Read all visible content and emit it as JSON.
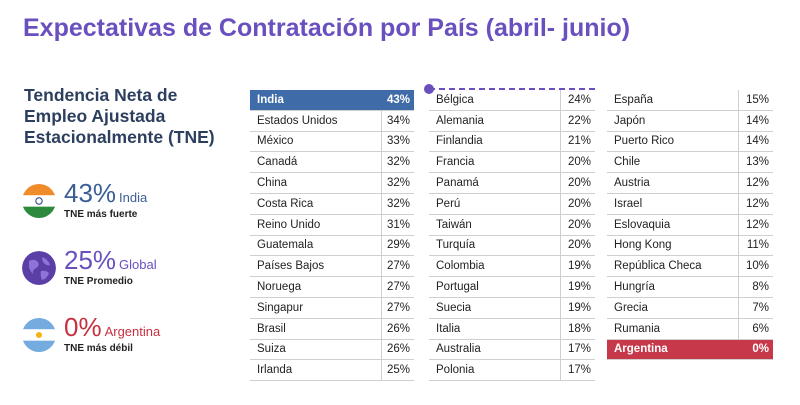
{
  "title": "Expectativas de Contratación por País (abril- junio)",
  "side": {
    "heading": "Tendencia Neta de Empleo Ajustada Estacionalmente (TNE)",
    "stats": [
      {
        "pct": "43%",
        "country": "India",
        "desc": "TNE más fuerte"
      },
      {
        "pct": "25%",
        "country": "Global",
        "desc": "TNE Promedio"
      },
      {
        "pct": "0%",
        "country": "Argentina",
        "desc": "TNE más débil"
      }
    ]
  },
  "colors": {
    "purple": "#6a4fbf",
    "india_blue": "#3f6ca8",
    "argentina_red": "#c6384a"
  },
  "chart_data": {
    "type": "table",
    "columns": [
      [
        {
          "country": "India",
          "value": "43%"
        },
        {
          "country": "Estados Unidos",
          "value": "34%"
        },
        {
          "country": "México",
          "value": "33%"
        },
        {
          "country": "Canadá",
          "value": "32%"
        },
        {
          "country": "China",
          "value": "32%"
        },
        {
          "country": "Costa Rica",
          "value": "32%"
        },
        {
          "country": "Reino Unido",
          "value": "31%"
        },
        {
          "country": "Guatemala",
          "value": "29%"
        },
        {
          "country": "Países Bajos",
          "value": "27%"
        },
        {
          "country": "Noruega",
          "value": "27%"
        },
        {
          "country": "Singapur",
          "value": "27%"
        },
        {
          "country": "Brasil",
          "value": "26%"
        },
        {
          "country": "Suiza",
          "value": "26%"
        },
        {
          "country": "Irlanda",
          "value": "25%"
        }
      ],
      [
        {
          "country": "Bélgica",
          "value": "24%"
        },
        {
          "country": "Alemania",
          "value": "22%"
        },
        {
          "country": "Finlandia",
          "value": "21%"
        },
        {
          "country": "Francia",
          "value": "20%"
        },
        {
          "country": "Panamá",
          "value": "20%"
        },
        {
          "country": "Perú",
          "value": "20%"
        },
        {
          "country": "Taiwán",
          "value": "20%"
        },
        {
          "country": "Turquía",
          "value": "20%"
        },
        {
          "country": "Colombia",
          "value": "19%"
        },
        {
          "country": "Portugal",
          "value": "19%"
        },
        {
          "country": "Suecia",
          "value": "19%"
        },
        {
          "country": "Italia",
          "value": "18%"
        },
        {
          "country": "Australia",
          "value": "17%"
        },
        {
          "country": "Polonia",
          "value": "17%"
        }
      ],
      [
        {
          "country": "España",
          "value": "15%"
        },
        {
          "country": "Japón",
          "value": "14%"
        },
        {
          "country": "Puerto Rico",
          "value": "14%"
        },
        {
          "country": "Chile",
          "value": "13%"
        },
        {
          "country": "Austria",
          "value": "12%"
        },
        {
          "country": "Israel",
          "value": "12%"
        },
        {
          "country": "Eslovaquia",
          "value": "12%"
        },
        {
          "country": "Hong Kong",
          "value": "11%"
        },
        {
          "country": "República Checa",
          "value": "10%"
        },
        {
          "country": "Hungría",
          "value": "8%"
        },
        {
          "country": "Grecia",
          "value": "7%"
        },
        {
          "country": "Rumania",
          "value": "6%"
        },
        {
          "country": "Argentina",
          "value": "0%"
        }
      ]
    ],
    "highlight_strongest": "India",
    "highlight_weakest": "Argentina"
  }
}
